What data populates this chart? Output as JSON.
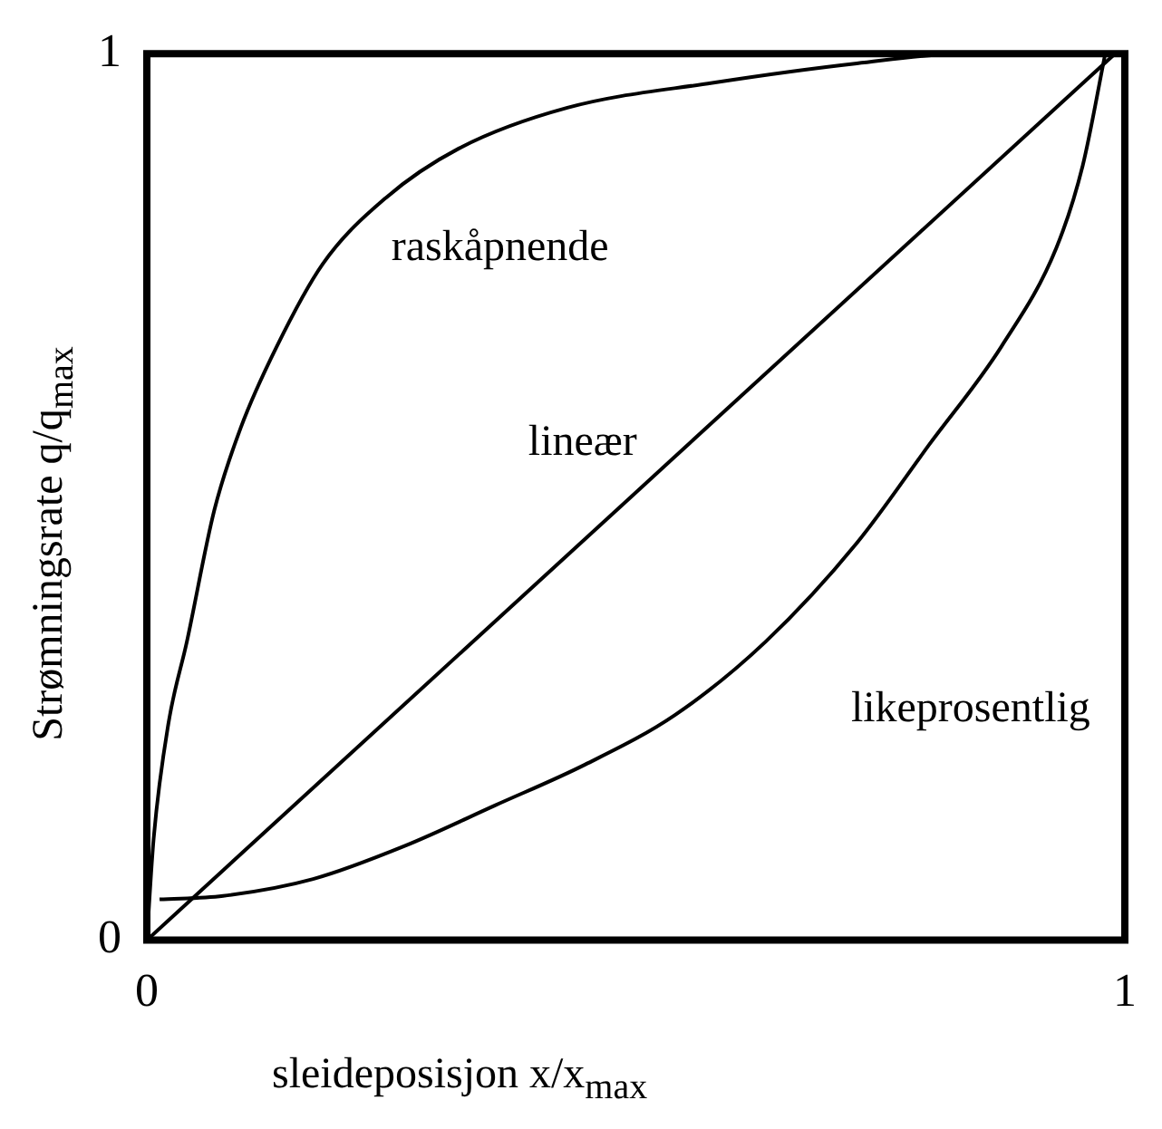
{
  "chart_data": {
    "type": "line",
    "xlabel": "sleideposisjon x/x$_{max}$",
    "ylabel": "Strømningsrate q/q$_{max}$",
    "xlim": [
      0,
      1
    ],
    "ylim": [
      0,
      1
    ],
    "xticks": [
      0,
      1
    ],
    "yticks": [
      0,
      1
    ],
    "legend": false,
    "marker": "none",
    "line_style": "solid",
    "series": [
      {
        "name": "raskåpnende",
        "color": "#000000",
        "x": [
          0,
          0.007,
          0.022,
          0.041,
          0.069,
          0.096,
          0.133,
          0.18,
          0.244,
          0.319,
          0.43,
          0.578,
          0.726,
          0.837,
          0.985
        ],
        "values": [
          0,
          0.115,
          0.244,
          0.337,
          0.485,
          0.578,
          0.67,
          0.763,
          0.837,
          0.893,
          0.939,
          0.967,
          0.989,
          1,
          1
        ]
      },
      {
        "name": "lineær",
        "color": "#000000",
        "x": [
          0,
          0.99
        ],
        "values": [
          0,
          1
        ]
      },
      {
        "name": "likeprosentlig",
        "color": "#000000",
        "x": [
          0.013,
          0.078,
          0.17,
          0.263,
          0.356,
          0.448,
          0.54,
          0.633,
          0.726,
          0.8,
          0.874,
          0.93,
          0.957,
          0.98
        ],
        "values": [
          0.046,
          0.05,
          0.069,
          0.106,
          0.152,
          0.198,
          0.254,
          0.337,
          0.448,
          0.559,
          0.67,
          0.781,
          0.874,
          1
        ]
      }
    ]
  }
}
